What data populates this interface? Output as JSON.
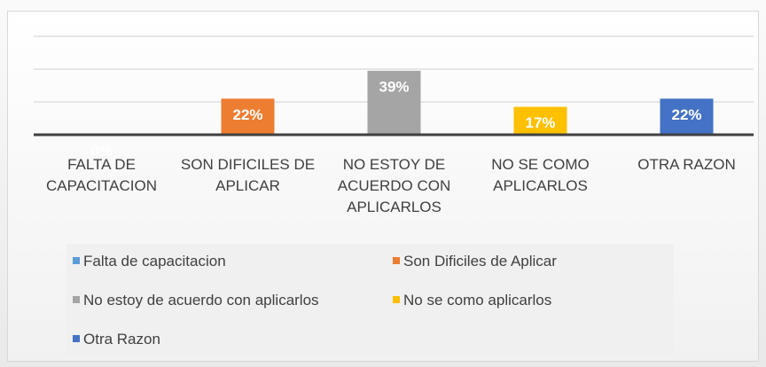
{
  "chart_data": {
    "type": "bar",
    "categories": [
      "FALTA DE CAPACITACION",
      "SON DIFICILES DE APLICAR",
      "NO ESTOY DE ACUERDO CON APLICARLOS",
      "NO SE COMO APLICARLOS",
      "OTRA RAZON"
    ],
    "values": [
      0,
      22,
      39,
      17,
      22
    ],
    "value_labels": [
      "0%",
      "22%",
      "39%",
      "17%",
      "22%"
    ],
    "colors": [
      "#5b9bd5",
      "#ed7d31",
      "#a5a5a5",
      "#ffc000",
      "#4472c4"
    ],
    "legend": [
      "Falta de capacitacion",
      "Son Dificiles de Aplicar",
      "No estoy de acuerdo con aplicarlos",
      "No se como aplicarlos",
      "Otra Razon"
    ],
    "ylim": [
      0,
      60
    ],
    "yticks": [
      0,
      20,
      40,
      60
    ],
    "grid": true
  }
}
